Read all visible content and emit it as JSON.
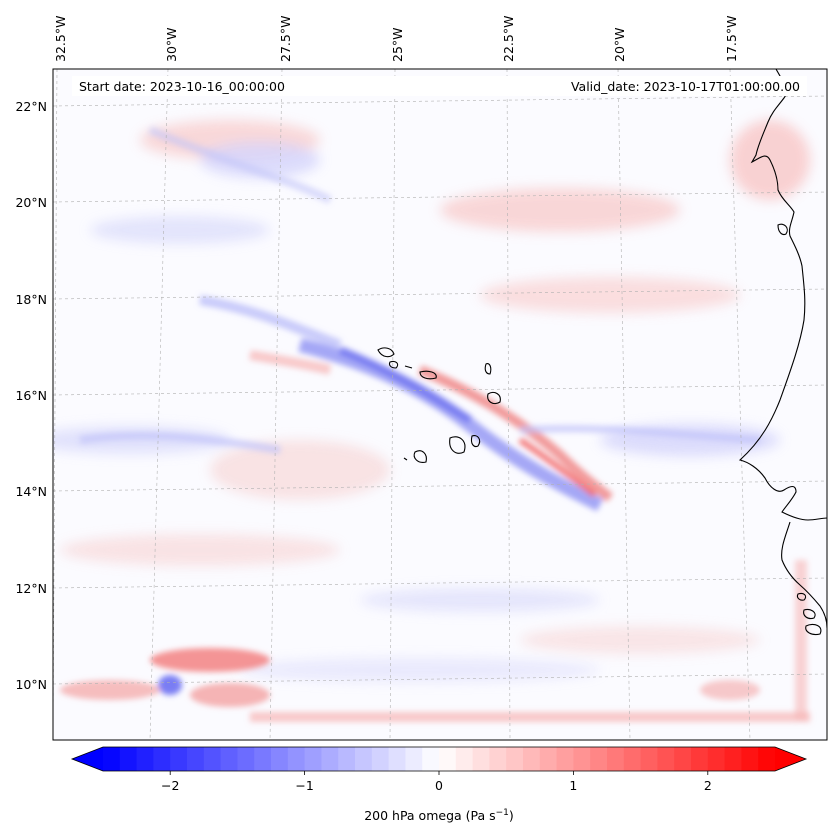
{
  "header": {
    "start_date": "Start date: 2023-10-16_00:00:00",
    "valid_date": "Valid_date: 2023-10-17T01:00:00.00"
  },
  "map": {
    "longitude_labels": [
      "32.5°W",
      "30°W",
      "27.5°W",
      "25°W",
      "22.5°W",
      "20°W",
      "17.5°W"
    ],
    "latitude_labels": [
      "22°N",
      "20°N",
      "18°N",
      "16°N",
      "14°N",
      "12°N",
      "10°N"
    ],
    "field": "200 hPa omega",
    "coastline_color": "#000000",
    "gridline_color": "#b0b0b0"
  },
  "colorbar": {
    "label_main": "200 hPa omega (Pa s",
    "label_exp": "−1",
    "label_close": ")",
    "ticks": [
      {
        "value": -2,
        "text": "−2"
      },
      {
        "value": -1,
        "text": "−1"
      },
      {
        "value": 0,
        "text": "0"
      },
      {
        "value": 1,
        "text": "1"
      },
      {
        "value": 2,
        "text": "2"
      }
    ],
    "min": -2.5,
    "max": 2.5,
    "levels": 40,
    "low_color": "#0000ff",
    "mid_color": "#ffffff",
    "high_color": "#ff0000"
  }
}
